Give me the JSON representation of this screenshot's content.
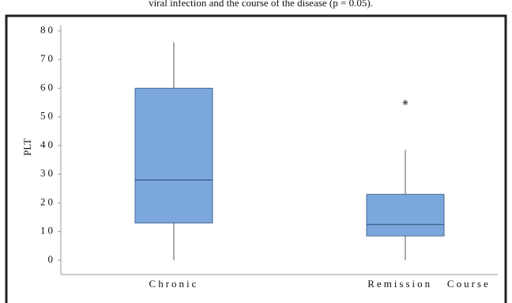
{
  "chart_data": {
    "type": "box",
    "title": "viral infection and the course of the disease (p = 0.05).",
    "y_label": "PLT",
    "categories": [
      "Chronic",
      "Remission   Course"
    ],
    "boxes": [
      {
        "min": 0,
        "q1": 13,
        "median": 28,
        "q3": 60,
        "max": 76,
        "outliers": []
      },
      {
        "min": 0,
        "q1": 8.5,
        "median": 12.5,
        "q3": 23,
        "max": 38.5,
        "outliers": [
          55
        ]
      }
    ],
    "color": "#7ba7dc",
    "ylim": [
      -4,
      80
    ],
    "yticks": [
      0,
      10,
      20,
      30,
      40,
      50,
      60,
      70,
      80
    ]
  }
}
